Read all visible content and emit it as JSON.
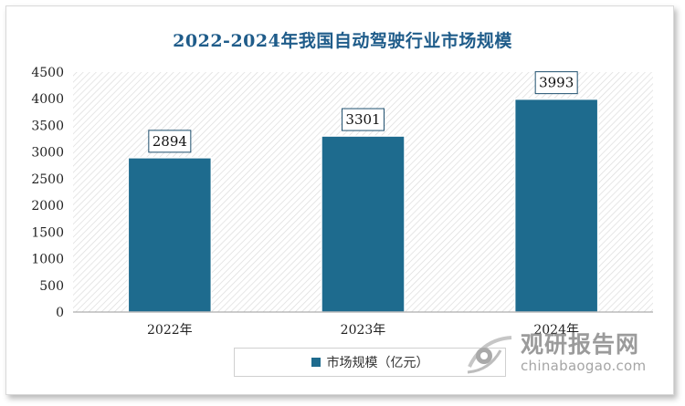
{
  "chart_data": {
    "type": "bar",
    "title": "2022-2024年我国自动驾驶行业市场规模",
    "categories": [
      "2022年",
      "2023年",
      "2024年"
    ],
    "series": [
      {
        "name": "市场规模（亿元）",
        "values": [
          2894,
          3301,
          3993
        ]
      }
    ],
    "data_labels": [
      "2894",
      "3301",
      "3993"
    ],
    "ylim": [
      0,
      4500
    ],
    "yticks": [
      0,
      500,
      1000,
      1500,
      2000,
      2500,
      3000,
      3500,
      4000,
      4500
    ],
    "xlabel": "",
    "ylabel": "",
    "legend_position": "bottom",
    "bar_color": "#1e6b8e"
  },
  "watermark": {
    "cn": "观研报告网",
    "en": "chinabaogao.com"
  }
}
